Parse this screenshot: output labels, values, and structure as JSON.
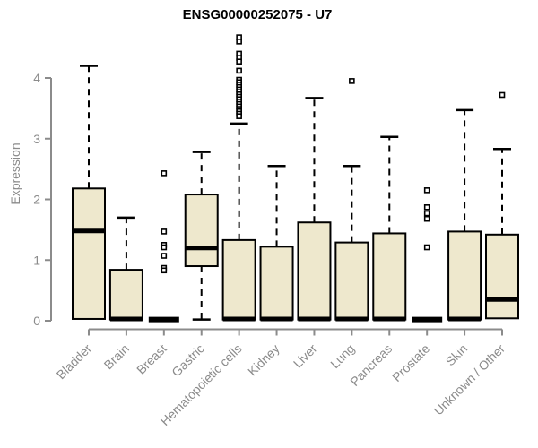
{
  "chart_data": {
    "type": "box",
    "title": "ENSG00000252075 - U7",
    "ylabel": "Expression",
    "xlabel": "",
    "ylim": [
      0,
      4.75
    ],
    "yticks": [
      0,
      1,
      2,
      3,
      4
    ],
    "grid": false,
    "legend": null,
    "box_fill": "#EEE8CD",
    "box_border": "#000000",
    "axis_color": "#8B8B8B",
    "text_color": "#8B8B8B",
    "title_color": "#000000",
    "categories": [
      "Bladder",
      "Brain",
      "Breast",
      "Gastric",
      "Hematopoietic cells",
      "Kidney",
      "Liver",
      "Lung",
      "Pancreas",
      "Prostate",
      "Skin",
      "Unknown / Other"
    ],
    "boxes": [
      {
        "name": "Bladder",
        "whisker_low": 0.03,
        "q1": 0.03,
        "median": 1.48,
        "q3": 2.18,
        "whisker_high": 4.2,
        "outliers": []
      },
      {
        "name": "Brain",
        "whisker_low": 0.02,
        "q1": 0.02,
        "median": 0.03,
        "q3": 0.84,
        "whisker_high": 1.7,
        "outliers": []
      },
      {
        "name": "Breast",
        "whisker_low": 0.02,
        "q1": 0.02,
        "median": 0.02,
        "q3": 0.02,
        "whisker_high": 0.02,
        "outliers": [
          2.43,
          1.47,
          1.25,
          1.21,
          1.07,
          0.87,
          0.83
        ]
      },
      {
        "name": "Gastric",
        "whisker_low": 0.02,
        "q1": 0.9,
        "median": 1.2,
        "q3": 2.08,
        "whisker_high": 2.78,
        "outliers": []
      },
      {
        "name": "Hematopoietic cells",
        "whisker_low": 0.02,
        "q1": 0.02,
        "median": 0.03,
        "q3": 1.33,
        "whisker_high": 3.25,
        "outliers": [
          4.67,
          4.6,
          4.4,
          4.33,
          4.27,
          4.12,
          3.97,
          3.93,
          3.89,
          3.85,
          3.81,
          3.77,
          3.73,
          3.69,
          3.65,
          3.61,
          3.57,
          3.53,
          3.49,
          3.45,
          3.41,
          3.37
        ]
      },
      {
        "name": "Kidney",
        "whisker_low": 0.02,
        "q1": 0.02,
        "median": 0.03,
        "q3": 1.22,
        "whisker_high": 2.55,
        "outliers": []
      },
      {
        "name": "Liver",
        "whisker_low": 0.02,
        "q1": 0.02,
        "median": 0.03,
        "q3": 1.62,
        "whisker_high": 3.67,
        "outliers": []
      },
      {
        "name": "Lung",
        "whisker_low": 0.02,
        "q1": 0.02,
        "median": 0.03,
        "q3": 1.29,
        "whisker_high": 2.55,
        "outliers": [
          3.95
        ]
      },
      {
        "name": "Pancreas",
        "whisker_low": 0.02,
        "q1": 0.02,
        "median": 0.03,
        "q3": 1.44,
        "whisker_high": 3.03,
        "outliers": []
      },
      {
        "name": "Prostate",
        "whisker_low": 0.02,
        "q1": 0.02,
        "median": 0.02,
        "q3": 0.02,
        "whisker_high": 0.02,
        "outliers": [
          2.15,
          1.87,
          1.77,
          1.68,
          1.21
        ]
      },
      {
        "name": "Skin",
        "whisker_low": 0.02,
        "q1": 0.02,
        "median": 0.03,
        "q3": 1.47,
        "whisker_high": 3.47,
        "outliers": []
      },
      {
        "name": "Unknown / Other",
        "whisker_low": 0.04,
        "q1": 0.04,
        "median": 0.35,
        "q3": 1.42,
        "whisker_high": 2.83,
        "outliers": [
          3.72
        ]
      }
    ]
  }
}
